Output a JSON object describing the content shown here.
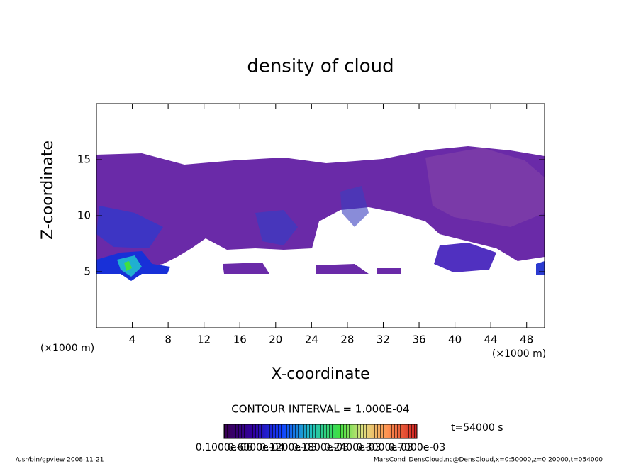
{
  "chart_data": {
    "type": "contour",
    "title": "density of cloud",
    "xlabel": "X-coordinate",
    "ylabel": "Z-coordinate",
    "xunit": "(×1000 m)",
    "xlim": [
      0,
      50
    ],
    "xticks": [
      4,
      8,
      12,
      16,
      20,
      24,
      28,
      32,
      36,
      40,
      44,
      48
    ],
    "ylim": [
      0,
      20
    ],
    "yticks": [
      5,
      10,
      15
    ],
    "contour_interval": "CONTOUR INTERVAL = 1.000E-04",
    "time_label": "t=54000 s",
    "colorbar_labels": [
      "0.1000e-06",
      "0.6000e-04",
      "0.1200e-03",
      "0.1800e-03",
      "0.2400e-03",
      "0.3000e-03",
      "0.7000e-03"
    ],
    "footer_left": "/usr/bin/gpview   2008-11-21",
    "footer_right": "MarsCond_DensCloud.nc@DensCloud,x=0:50000,z=0:20000,t=054000"
  }
}
